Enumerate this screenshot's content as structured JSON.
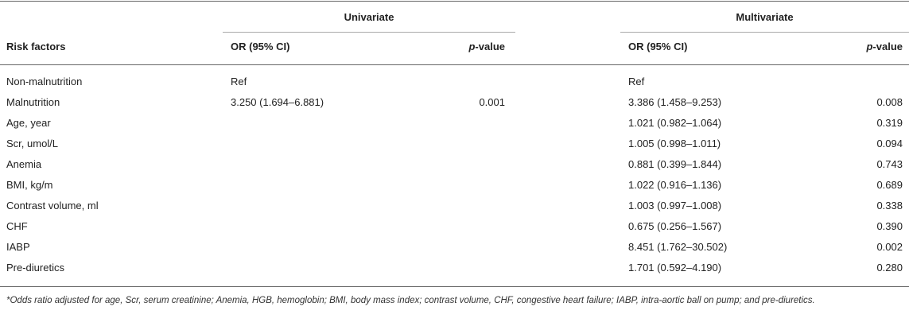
{
  "table": {
    "group_headers": [
      "Univariate",
      "Multivariate"
    ],
    "column_headers": [
      "Risk factors",
      "OR (95% CI)",
      "p-value",
      "OR (95% CI)",
      "p-value"
    ],
    "rows": [
      [
        "Non-malnutrition",
        "Ref",
        null,
        "Ref",
        null
      ],
      [
        "Malnutrition",
        "3.250 (1.694–6.881)",
        "0.001",
        "3.386 (1.458–9.253)",
        "0.008"
      ],
      [
        "Age, year",
        null,
        null,
        "1.021 (0.982–1.064)",
        "0.319"
      ],
      [
        "Scr, umol/L",
        null,
        null,
        "1.005 (0.998–1.011)",
        "0.094"
      ],
      [
        "Anemia",
        null,
        null,
        "0.881 (0.399–1.844)",
        "0.743"
      ],
      [
        "BMI, kg/m",
        null,
        null,
        "1.022 (0.916–1.136)",
        "0.689"
      ],
      [
        "Contrast volume, ml",
        null,
        null,
        "1.003 (0.997–1.008)",
        "0.338"
      ],
      [
        "CHF",
        null,
        null,
        "0.675 (0.256–1.567)",
        "0.390"
      ],
      [
        "IABP",
        null,
        null,
        "8.451 (1.762–30.502)",
        "0.002"
      ],
      [
        "Pre-diuretics",
        null,
        null,
        "1.701 (0.592–4.190)",
        "0.280"
      ]
    ]
  },
  "footnote": "*Odds ratio adjusted for age, Scr, serum creatinine; Anemia, HGB, hemoglobin; BMI, body mass index; contrast volume, CHF, congestive heart failure; IABP, intra-aortic ball on pump; and pre-diuretics."
}
